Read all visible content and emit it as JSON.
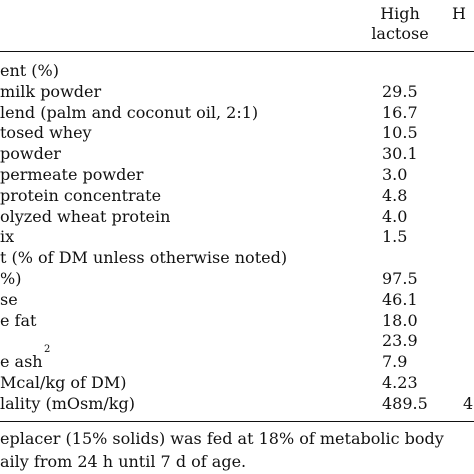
{
  "header": {
    "col_high_lactose_line1": "High",
    "col_high_lactose_line2": "lactose",
    "col_next_partial": "H"
  },
  "rows": [
    {
      "label": "ent (%)",
      "value": ""
    },
    {
      "label": "milk powder",
      "value": "29.5"
    },
    {
      "label": "lend (palm and coconut oil, 2:1)",
      "value": "16.7"
    },
    {
      "label": "tosed whey",
      "value": "10.5"
    },
    {
      "label": " powder",
      "value": "30.1"
    },
    {
      "label": " permeate powder",
      "value": "3.0"
    },
    {
      "label": " protein concentrate",
      "value": "4.8"
    },
    {
      "label": "olyzed wheat protein",
      "value": "4.0"
    },
    {
      "label": "ix",
      "value": "1.5"
    },
    {
      "label": "t (% of DM unless otherwise noted)",
      "value": ""
    },
    {
      "label": "%)",
      "value": "97.5"
    },
    {
      "label": "se",
      "value": "46.1"
    },
    {
      "label": "e fat",
      "value": "18.0"
    },
    {
      "label": "",
      "value": "23.9"
    },
    {
      "label": "e ash",
      "label_sup": "2",
      "value": "7.9"
    },
    {
      "label": "Mcal/kg of DM)",
      "value": "4.23"
    },
    {
      "label": "lality (mOsm/kg)",
      "value": "489.5",
      "value2": "4"
    }
  ],
  "footnote": {
    "line1": "eplacer (15% solids) was fed at 18% of metabolic body",
    "line2": "aily from 24 h until 7 d of age."
  }
}
